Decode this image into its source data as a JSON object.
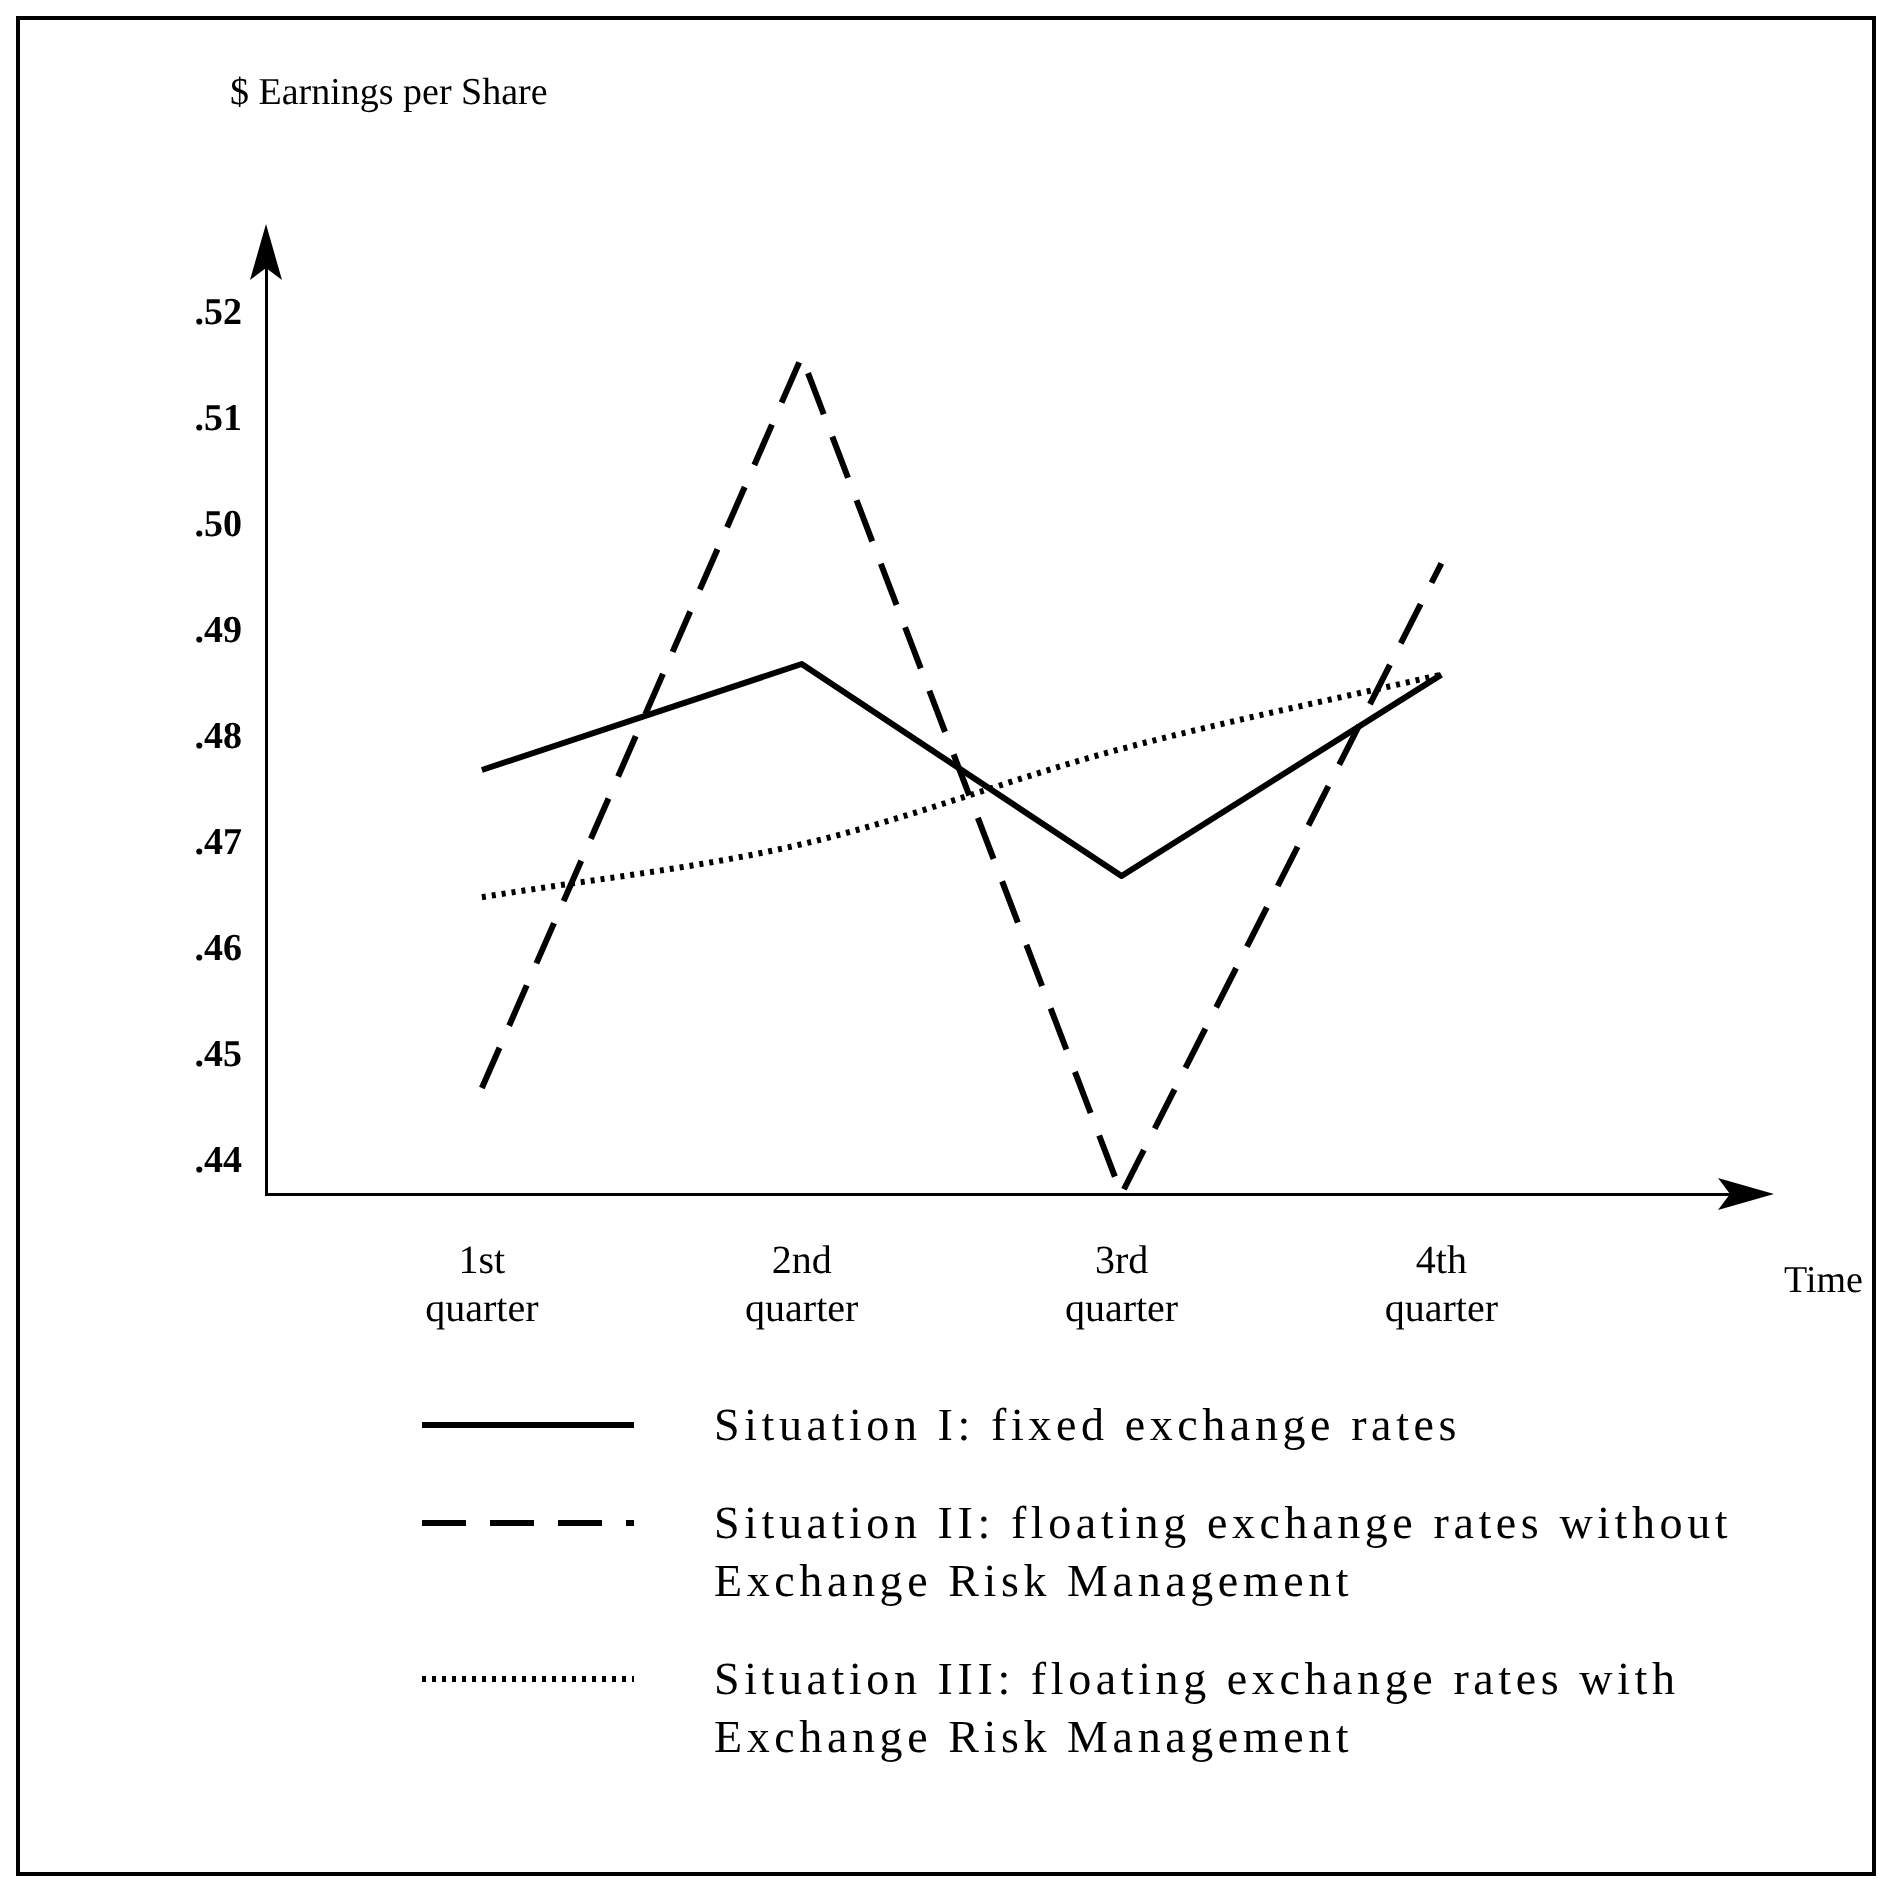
{
  "chart_data": {
    "type": "line",
    "xlabel": "Time",
    "ylabel": "$ Earnings per Share",
    "categories": [
      "1st quarter",
      "2nd quarter",
      "3rd quarter",
      "4th quarter"
    ],
    "ylim": [
      0.437,
      0.527
    ],
    "yticks": [
      {
        "value": 0.44,
        "label": ".44"
      },
      {
        "value": 0.45,
        "label": ".45"
      },
      {
        "value": 0.46,
        "label": ".46"
      },
      {
        "value": 0.47,
        "label": ".47"
      },
      {
        "value": 0.48,
        "label": ".48"
      },
      {
        "value": 0.49,
        "label": ".49"
      },
      {
        "value": 0.5,
        "label": ".50"
      },
      {
        "value": 0.51,
        "label": ".51"
      },
      {
        "value": 0.52,
        "label": ".52"
      }
    ],
    "legend": "bottom",
    "series": [
      {
        "name": "Situation I: fixed exchange rates",
        "color": "#000000",
        "line_style": "solid",
        "values": [
          0.477,
          0.487,
          0.467,
          0.486
        ]
      },
      {
        "name": "Situation II: floating exchange rates without Exchange Risk Management",
        "color": "#000000",
        "line_style": "dashed",
        "values": [
          0.447,
          0.516,
          0.437,
          0.4965
        ]
      },
      {
        "name": "Situation III: floating exchange rates with Exchange Risk Management",
        "color": "#000000",
        "line_style": "dotted",
        "values": [
          0.465,
          0.47,
          0.479,
          0.486
        ]
      }
    ]
  }
}
